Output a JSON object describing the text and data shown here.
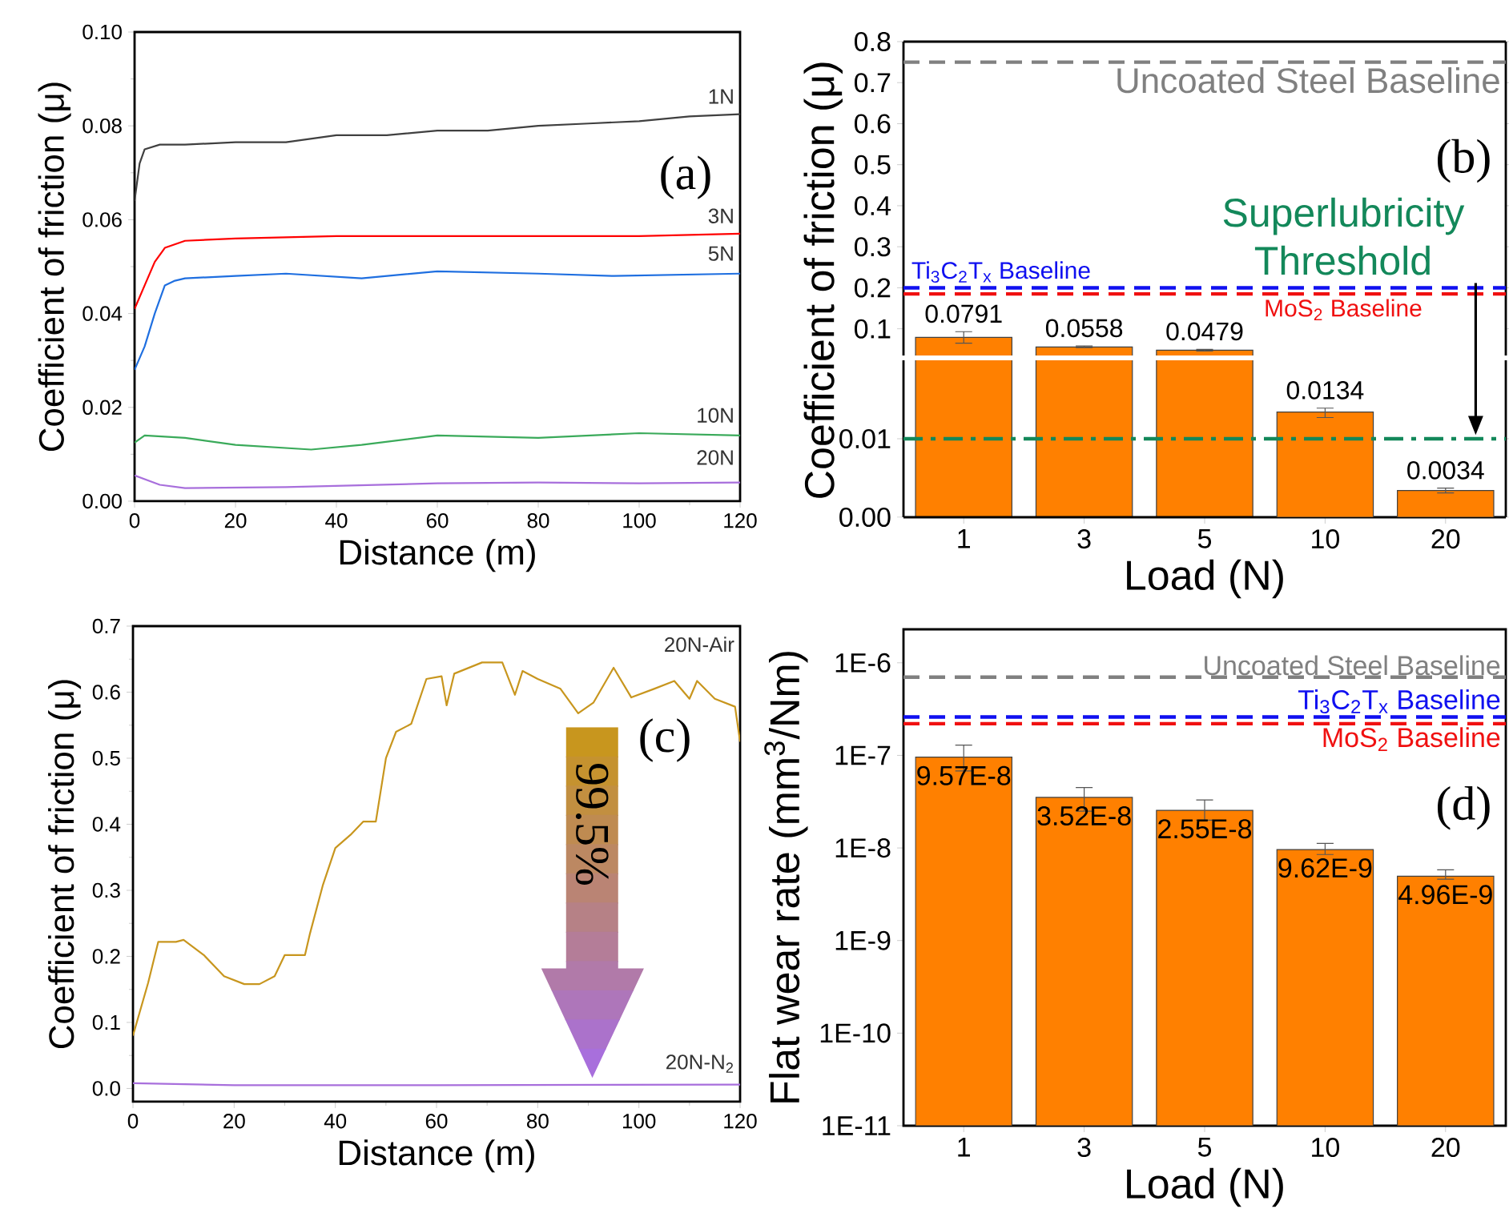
{
  "chart_data": [
    {
      "type": "line",
      "xlabel": "Distance (m)",
      "ylabel": "Coefficient of friction (μ)",
      "xlim": [
        0,
        120
      ],
      "xticks": [
        0,
        20,
        40,
        60,
        80,
        100,
        120
      ],
      "ylim": [
        0,
        0.1
      ],
      "yticks": [
        {
          "value": 0,
          "label": "0.00"
        },
        {
          "value": 0.02,
          "label": "0.02"
        },
        {
          "value": 0.04,
          "label": "0.04"
        },
        {
          "value": 0.06,
          "label": "0.06"
        },
        {
          "value": 0.08,
          "label": "0.08"
        },
        {
          "value": 0.1,
          "label": "0.10"
        }
      ],
      "annotations": [
        "(a)"
      ],
      "series": [
        {
          "name": "1N",
          "color": "#404040",
          "x": [
            0,
            1,
            2,
            5,
            10,
            20,
            30,
            40,
            50,
            60,
            70,
            80,
            90,
            100,
            110,
            120
          ],
          "values": [
            0.064,
            0.072,
            0.075,
            0.076,
            0.076,
            0.0765,
            0.0765,
            0.078,
            0.078,
            0.079,
            0.079,
            0.08,
            0.0805,
            0.081,
            0.082,
            0.0825
          ]
        },
        {
          "name": "3N",
          "color": "#ff0000",
          "x": [
            0,
            2,
            4,
            6,
            10,
            20,
            40,
            60,
            80,
            100,
            120
          ],
          "values": [
            0.041,
            0.046,
            0.051,
            0.054,
            0.0555,
            0.056,
            0.0565,
            0.0565,
            0.0565,
            0.0565,
            0.057
          ]
        },
        {
          "name": "5N",
          "color": "#1f6fe0",
          "x": [
            0,
            2,
            4,
            6,
            8,
            10,
            20,
            30,
            45,
            60,
            80,
            95,
            120
          ],
          "values": [
            0.028,
            0.033,
            0.04,
            0.046,
            0.047,
            0.0475,
            0.048,
            0.0485,
            0.0475,
            0.049,
            0.0485,
            0.048,
            0.0485
          ]
        },
        {
          "name": "10N",
          "color": "#3aaa5a",
          "x": [
            0,
            2,
            10,
            20,
            35,
            45,
            60,
            80,
            100,
            120
          ],
          "values": [
            0.0125,
            0.014,
            0.0135,
            0.012,
            0.011,
            0.012,
            0.014,
            0.0135,
            0.0145,
            0.014
          ]
        },
        {
          "name": "20N",
          "color": "#a86fdc",
          "x": [
            0,
            5,
            10,
            30,
            60,
            80,
            100,
            120
          ],
          "values": [
            0.0055,
            0.0035,
            0.0028,
            0.003,
            0.0038,
            0.004,
            0.0038,
            0.004
          ]
        }
      ]
    },
    {
      "type": "bar",
      "ylabel": "Coefficient of friction (μ)",
      "categories": [
        "1",
        "3",
        "5",
        "10",
        "20"
      ],
      "values": [
        0.0791,
        0.0558,
        0.0479,
        null,
        null
      ],
      "errors": [
        [
          0.065,
          0.093
        ],
        [
          0.054,
          0.058
        ],
        [
          0.046,
          0.05
        ],
        null,
        null
      ],
      "value_labels": [
        "0.0791",
        "0.0558",
        "0.0479",
        null,
        null
      ],
      "color": "#ff8000",
      "ylim": [
        0.035,
        0.8
      ],
      "yticks": [
        0.1,
        0.2,
        0.3,
        0.4,
        0.5,
        0.6,
        0.7,
        0.8
      ],
      "tick_labels": "y",
      "annotations": [
        "(b)"
      ],
      "ref_lines": [
        {
          "axis": "y",
          "value": 0.75,
          "label": "Uncoated Steel Baseline",
          "color": "#808080",
          "line_style": "dashed"
        },
        {
          "axis": "y",
          "value": 0.2,
          "label": "Ti$_{3}$C$_{2}$T$_{x}$ Baseline",
          "color": "#1010f0",
          "line_style": "dashed"
        },
        {
          "axis": "y",
          "value": 0.185,
          "label": "MoS$_{2}$ Baseline",
          "color": "#f01010",
          "line_style": "dashed"
        }
      ]
    },
    {
      "type": "bar",
      "xlabel": "Load (N)",
      "categories": [
        "1",
        "3",
        "5",
        "10",
        "20"
      ],
      "values": [
        null,
        null,
        null,
        0.0134,
        0.0034
      ],
      "errors": [
        null,
        null,
        null,
        [
          0.0127,
          0.0139
        ],
        [
          0.0031,
          0.0037
        ]
      ],
      "value_labels": [
        null,
        null,
        null,
        "0.0134",
        "0.0034"
      ],
      "color": "#ff8000",
      "ylim": [
        0,
        0.02
      ],
      "yticks": [
        {
          "value": 0,
          "label": "0.00"
        },
        {
          "value": 0.01,
          "label": "0.01"
        }
      ],
      "ref_lines": [
        {
          "axis": "y",
          "value": 0.01,
          "label": "Superlubricity Threshold",
          "color": "#13885a",
          "line_style": "dashdot"
        }
      ]
    },
    {
      "type": "line",
      "xlabel": "Distance (m)",
      "ylabel": "Coefficient of friction (μ)",
      "xlim": [
        0,
        120
      ],
      "xticks": [
        0,
        20,
        40,
        60,
        80,
        100,
        120
      ],
      "ylim": [
        -0.02,
        0.7
      ],
      "yticks": [
        {
          "value": 0,
          "label": "0.0"
        },
        {
          "value": 0.1,
          "label": "0.1"
        },
        {
          "value": 0.2,
          "label": "0.2"
        },
        {
          "value": 0.3,
          "label": "0.3"
        },
        {
          "value": 0.4,
          "label": "0.4"
        },
        {
          "value": 0.5,
          "label": "0.5"
        },
        {
          "value": 0.6,
          "label": "0.6"
        },
        {
          "value": 0.7,
          "label": "0.7"
        }
      ],
      "annotations": [
        "(c)",
        "99.5%"
      ],
      "series": [
        {
          "name": "20N-Air",
          "color": "#c8961e",
          "x": [
            0,
            3,
            5,
            8.5,
            10,
            14,
            18,
            22,
            25,
            28,
            30,
            34,
            35,
            37.5,
            40,
            43,
            45.5,
            48,
            50,
            52,
            55,
            58,
            61,
            62,
            63.5,
            69,
            73,
            75.5,
            77,
            80,
            84.5,
            88,
            91,
            95,
            98.5,
            103,
            107,
            110,
            111.5,
            115,
            119,
            120
          ],
          "values": [
            0.08,
            0.16,
            0.222,
            0.222,
            0.225,
            0.202,
            0.17,
            0.158,
            0.158,
            0.17,
            0.202,
            0.202,
            0.235,
            0.307,
            0.364,
            0.384,
            0.404,
            0.404,
            0.5,
            0.54,
            0.552,
            0.62,
            0.624,
            0.58,
            0.628,
            0.645,
            0.645,
            0.596,
            0.632,
            0.62,
            0.605,
            0.568,
            0.584,
            0.637,
            0.592,
            0.605,
            0.617,
            0.59,
            0.617,
            0.59,
            0.578,
            0.525
          ]
        },
        {
          "name": "20N-N$_{2}$",
          "color": "#a86fdc",
          "x": [
            0,
            20,
            60,
            120
          ],
          "values": [
            0.008,
            0.005,
            0.005,
            0.006
          ]
        }
      ]
    },
    {
      "type": "bar",
      "xlabel": "Load (N)",
      "ylabel": "Flat wear rate (mm$^{3}$/Nm)",
      "categories": [
        "1",
        "3",
        "5",
        "10",
        "20"
      ],
      "values": [
        9.57e-08,
        3.52e-08,
        2.55e-08,
        9.62e-09,
        4.96e-09
      ],
      "errors": [
        [
          6.8e-08,
          1.29e-07
        ],
        [
          2.5e-08,
          4.5e-08
        ],
        [
          2e-08,
          3.3e-08
        ],
        [
          8.5e-09,
          1.12e-08
        ],
        [
          4.6e-09,
          5.8e-09
        ]
      ],
      "value_labels": [
        "9.57E-8",
        "3.52E-8",
        "2.55E-8",
        "9.62E-9",
        "4.96E-9"
      ],
      "color": "#ff8000",
      "log": "y",
      "ylim": [
        1e-11,
        2.3e-06
      ],
      "yticks": [
        {
          "value": 1e-11,
          "label": "1E-11"
        },
        {
          "value": 1e-10,
          "label": "1E-10"
        },
        {
          "value": 1e-09,
          "label": "1E-9"
        },
        {
          "value": 1e-08,
          "label": "1E-8"
        },
        {
          "value": 1e-07,
          "label": "1E-7"
        },
        {
          "value": 1e-06,
          "label": "1E-6"
        }
      ],
      "annotations": [
        "(d)"
      ],
      "ref_lines": [
        {
          "axis": "y",
          "value": 7e-07,
          "label": "Uncoated Steel Baseline",
          "color": "#808080",
          "line_style": "dashed"
        },
        {
          "axis": "y",
          "value": 2.6e-07,
          "label": "Ti$_{3}$C$_{2}$T$_{x}$ Baseline",
          "color": "#1010f0",
          "line_style": "dashed"
        },
        {
          "axis": "y",
          "value": 2.2e-07,
          "label": "MoS$_{2}$ Baseline",
          "color": "#f01010",
          "line_style": "dashed"
        }
      ]
    }
  ]
}
